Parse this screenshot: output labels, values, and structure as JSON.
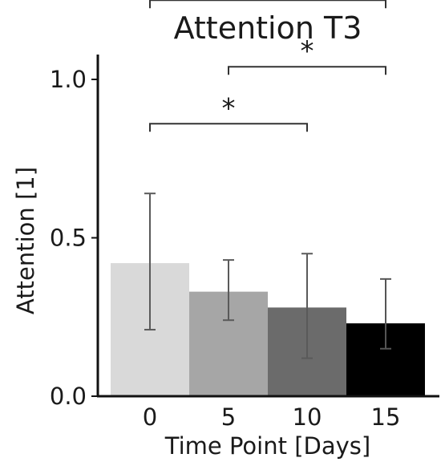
{
  "chart_data": {
    "type": "bar",
    "title": "Attention T3",
    "xlabel": "Time Point [Days]",
    "ylabel": "Attention [1]",
    "categories": [
      "0",
      "5",
      "10",
      "15"
    ],
    "values": [
      0.42,
      0.33,
      0.28,
      0.23
    ],
    "errors": [
      [
        0.21,
        0.64
      ],
      [
        0.24,
        0.43
      ],
      [
        0.12,
        0.45
      ],
      [
        0.15,
        0.37
      ]
    ],
    "bar_colors": [
      "#d9d9d9",
      "#a6a6a6",
      "#6b6b6b",
      "#000000"
    ],
    "ylim": [
      0,
      1.45
    ],
    "yticks": [
      0.0,
      0.5,
      1.0
    ],
    "ytick_labels": [
      "0.0",
      "0.5",
      "1.0"
    ],
    "grid": false,
    "significance": [
      {
        "from": 0,
        "to": 3,
        "y": 1.25,
        "label": "*"
      },
      {
        "from": 1,
        "to": 3,
        "y": 1.04,
        "label": "*"
      },
      {
        "from": 0,
        "to": 2,
        "y": 0.86,
        "label": "*"
      }
    ]
  }
}
